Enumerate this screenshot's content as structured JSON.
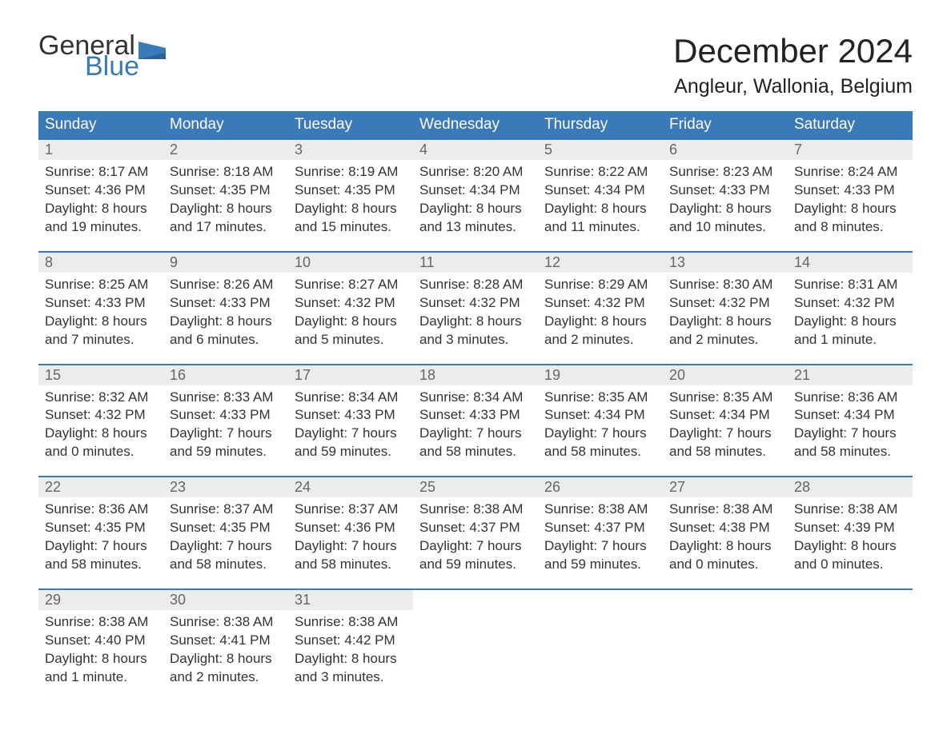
{
  "logo": {
    "text1": "General",
    "text2": "Blue",
    "flag_color": "#3a7ab8"
  },
  "title": "December 2024",
  "location": "Angleur, Wallonia, Belgium",
  "colors": {
    "header_bg": "#3a7ab8",
    "header_text": "#ffffff",
    "daynum_bg": "#ececec",
    "daynum_text": "#666666",
    "row_border": "#3a7ab8",
    "body_text": "#333333",
    "background": "#ffffff"
  },
  "fonts": {
    "title_size": 42,
    "location_size": 25,
    "header_size": 19,
    "daynum_size": 18,
    "cell_size": 17
  },
  "weekdays": [
    "Sunday",
    "Monday",
    "Tuesday",
    "Wednesday",
    "Thursday",
    "Friday",
    "Saturday"
  ],
  "weeks": [
    [
      {
        "day": "1",
        "sunrise": "Sunrise: 8:17 AM",
        "sunset": "Sunset: 4:36 PM",
        "daylight1": "Daylight: 8 hours",
        "daylight2": "and 19 minutes."
      },
      {
        "day": "2",
        "sunrise": "Sunrise: 8:18 AM",
        "sunset": "Sunset: 4:35 PM",
        "daylight1": "Daylight: 8 hours",
        "daylight2": "and 17 minutes."
      },
      {
        "day": "3",
        "sunrise": "Sunrise: 8:19 AM",
        "sunset": "Sunset: 4:35 PM",
        "daylight1": "Daylight: 8 hours",
        "daylight2": "and 15 minutes."
      },
      {
        "day": "4",
        "sunrise": "Sunrise: 8:20 AM",
        "sunset": "Sunset: 4:34 PM",
        "daylight1": "Daylight: 8 hours",
        "daylight2": "and 13 minutes."
      },
      {
        "day": "5",
        "sunrise": "Sunrise: 8:22 AM",
        "sunset": "Sunset: 4:34 PM",
        "daylight1": "Daylight: 8 hours",
        "daylight2": "and 11 minutes."
      },
      {
        "day": "6",
        "sunrise": "Sunrise: 8:23 AM",
        "sunset": "Sunset: 4:33 PM",
        "daylight1": "Daylight: 8 hours",
        "daylight2": "and 10 minutes."
      },
      {
        "day": "7",
        "sunrise": "Sunrise: 8:24 AM",
        "sunset": "Sunset: 4:33 PM",
        "daylight1": "Daylight: 8 hours",
        "daylight2": "and 8 minutes."
      }
    ],
    [
      {
        "day": "8",
        "sunrise": "Sunrise: 8:25 AM",
        "sunset": "Sunset: 4:33 PM",
        "daylight1": "Daylight: 8 hours",
        "daylight2": "and 7 minutes."
      },
      {
        "day": "9",
        "sunrise": "Sunrise: 8:26 AM",
        "sunset": "Sunset: 4:33 PM",
        "daylight1": "Daylight: 8 hours",
        "daylight2": "and 6 minutes."
      },
      {
        "day": "10",
        "sunrise": "Sunrise: 8:27 AM",
        "sunset": "Sunset: 4:32 PM",
        "daylight1": "Daylight: 8 hours",
        "daylight2": "and 5 minutes."
      },
      {
        "day": "11",
        "sunrise": "Sunrise: 8:28 AM",
        "sunset": "Sunset: 4:32 PM",
        "daylight1": "Daylight: 8 hours",
        "daylight2": "and 3 minutes."
      },
      {
        "day": "12",
        "sunrise": "Sunrise: 8:29 AM",
        "sunset": "Sunset: 4:32 PM",
        "daylight1": "Daylight: 8 hours",
        "daylight2": "and 2 minutes."
      },
      {
        "day": "13",
        "sunrise": "Sunrise: 8:30 AM",
        "sunset": "Sunset: 4:32 PM",
        "daylight1": "Daylight: 8 hours",
        "daylight2": "and 2 minutes."
      },
      {
        "day": "14",
        "sunrise": "Sunrise: 8:31 AM",
        "sunset": "Sunset: 4:32 PM",
        "daylight1": "Daylight: 8 hours",
        "daylight2": "and 1 minute."
      }
    ],
    [
      {
        "day": "15",
        "sunrise": "Sunrise: 8:32 AM",
        "sunset": "Sunset: 4:32 PM",
        "daylight1": "Daylight: 8 hours",
        "daylight2": "and 0 minutes."
      },
      {
        "day": "16",
        "sunrise": "Sunrise: 8:33 AM",
        "sunset": "Sunset: 4:33 PM",
        "daylight1": "Daylight: 7 hours",
        "daylight2": "and 59 minutes."
      },
      {
        "day": "17",
        "sunrise": "Sunrise: 8:34 AM",
        "sunset": "Sunset: 4:33 PM",
        "daylight1": "Daylight: 7 hours",
        "daylight2": "and 59 minutes."
      },
      {
        "day": "18",
        "sunrise": "Sunrise: 8:34 AM",
        "sunset": "Sunset: 4:33 PM",
        "daylight1": "Daylight: 7 hours",
        "daylight2": "and 58 minutes."
      },
      {
        "day": "19",
        "sunrise": "Sunrise: 8:35 AM",
        "sunset": "Sunset: 4:34 PM",
        "daylight1": "Daylight: 7 hours",
        "daylight2": "and 58 minutes."
      },
      {
        "day": "20",
        "sunrise": "Sunrise: 8:35 AM",
        "sunset": "Sunset: 4:34 PM",
        "daylight1": "Daylight: 7 hours",
        "daylight2": "and 58 minutes."
      },
      {
        "day": "21",
        "sunrise": "Sunrise: 8:36 AM",
        "sunset": "Sunset: 4:34 PM",
        "daylight1": "Daylight: 7 hours",
        "daylight2": "and 58 minutes."
      }
    ],
    [
      {
        "day": "22",
        "sunrise": "Sunrise: 8:36 AM",
        "sunset": "Sunset: 4:35 PM",
        "daylight1": "Daylight: 7 hours",
        "daylight2": "and 58 minutes."
      },
      {
        "day": "23",
        "sunrise": "Sunrise: 8:37 AM",
        "sunset": "Sunset: 4:35 PM",
        "daylight1": "Daylight: 7 hours",
        "daylight2": "and 58 minutes."
      },
      {
        "day": "24",
        "sunrise": "Sunrise: 8:37 AM",
        "sunset": "Sunset: 4:36 PM",
        "daylight1": "Daylight: 7 hours",
        "daylight2": "and 58 minutes."
      },
      {
        "day": "25",
        "sunrise": "Sunrise: 8:38 AM",
        "sunset": "Sunset: 4:37 PM",
        "daylight1": "Daylight: 7 hours",
        "daylight2": "and 59 minutes."
      },
      {
        "day": "26",
        "sunrise": "Sunrise: 8:38 AM",
        "sunset": "Sunset: 4:37 PM",
        "daylight1": "Daylight: 7 hours",
        "daylight2": "and 59 minutes."
      },
      {
        "day": "27",
        "sunrise": "Sunrise: 8:38 AM",
        "sunset": "Sunset: 4:38 PM",
        "daylight1": "Daylight: 8 hours",
        "daylight2": "and 0 minutes."
      },
      {
        "day": "28",
        "sunrise": "Sunrise: 8:38 AM",
        "sunset": "Sunset: 4:39 PM",
        "daylight1": "Daylight: 8 hours",
        "daylight2": "and 0 minutes."
      }
    ],
    [
      {
        "day": "29",
        "sunrise": "Sunrise: 8:38 AM",
        "sunset": "Sunset: 4:40 PM",
        "daylight1": "Daylight: 8 hours",
        "daylight2": "and 1 minute."
      },
      {
        "day": "30",
        "sunrise": "Sunrise: 8:38 AM",
        "sunset": "Sunset: 4:41 PM",
        "daylight1": "Daylight: 8 hours",
        "daylight2": "and 2 minutes."
      },
      {
        "day": "31",
        "sunrise": "Sunrise: 8:38 AM",
        "sunset": "Sunset: 4:42 PM",
        "daylight1": "Daylight: 8 hours",
        "daylight2": "and 3 minutes."
      },
      null,
      null,
      null,
      null
    ]
  ]
}
